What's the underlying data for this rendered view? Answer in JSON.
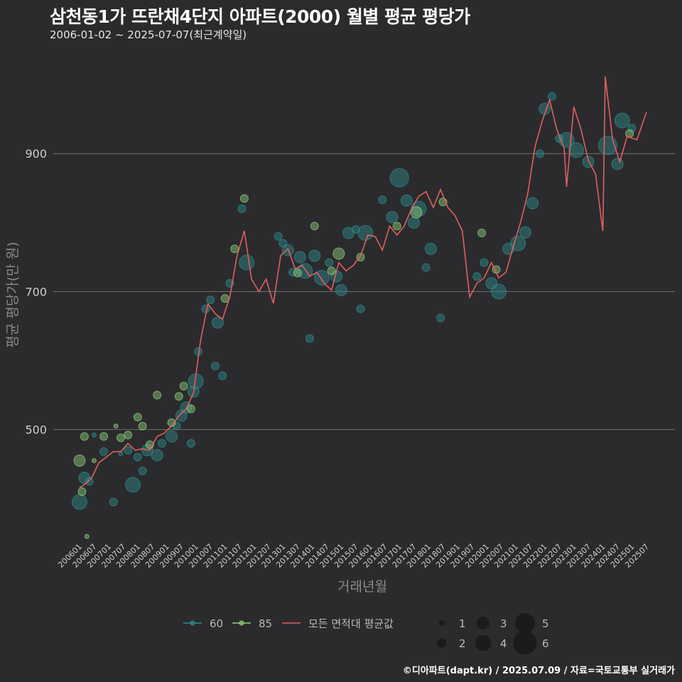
{
  "header": {
    "title": "삼천동1가 뜨란채4단지 아파트(2000) 월별 평균 평당가",
    "subtitle": "2006-01-02 ~ 2025-07-07(최근계약일)"
  },
  "caption": "©디아파트(dapt.kr) / 2025.07.09 / 자료=국토교통부 실거래가",
  "colors": {
    "background": "#2b2b2d",
    "gridline": "#6f6f6f",
    "series_60": "#2e8b8f",
    "series_85": "#8fd17a",
    "average_line": "#e0605e"
  },
  "chart_data": {
    "type": "scatter",
    "xlabel": "거래년월",
    "ylabel": "평균 평당가(만 원)",
    "ylim": [
      340,
      1030
    ],
    "yticks": [
      500,
      700,
      900
    ],
    "grid": "horizontal",
    "x_tick_labels": [
      "200601",
      "200607",
      "200701",
      "200707",
      "200801",
      "200807",
      "200901",
      "200907",
      "201001",
      "201007",
      "201101",
      "201107",
      "201201",
      "201207",
      "201301",
      "201307",
      "201401",
      "201407",
      "201501",
      "201507",
      "201601",
      "201607",
      "201701",
      "201707",
      "201801",
      "201807",
      "201901",
      "201907",
      "202001",
      "202007",
      "202101",
      "202107",
      "202201",
      "202207",
      "202301",
      "202307",
      "202401",
      "202407",
      "202501",
      "202507"
    ],
    "legend": {
      "position": "bottom",
      "series_items": [
        {
          "key": "60",
          "label": "60",
          "color": "#2e8b8f"
        },
        {
          "key": "85",
          "label": "85",
          "color": "#8fd17a"
        },
        {
          "key": "avg",
          "label": "모든 면적대 평균값",
          "color": "#e0605e"
        }
      ],
      "size_items": [
        {
          "label": "1",
          "value": 1
        },
        {
          "label": "2",
          "value": 2
        },
        {
          "label": "3",
          "value": 3
        },
        {
          "label": "4",
          "value": 4
        },
        {
          "label": "5",
          "value": 5
        },
        {
          "label": "6",
          "value": 6
        }
      ]
    },
    "series": [
      {
        "name": "60",
        "type": "scatter",
        "color": "#2e8b8f",
        "points": [
          {
            "x": "2006-01",
            "y": 395,
            "count": 4
          },
          {
            "x": "2006-03",
            "y": 430,
            "count": 3
          },
          {
            "x": "2006-05",
            "y": 425,
            "count": 2
          },
          {
            "x": "2006-07",
            "y": 492,
            "count": 1
          },
          {
            "x": "2006-11",
            "y": 468,
            "count": 2
          },
          {
            "x": "2007-03",
            "y": 395,
            "count": 2
          },
          {
            "x": "2007-06",
            "y": 465,
            "count": 1
          },
          {
            "x": "2007-09",
            "y": 470,
            "count": 2
          },
          {
            "x": "2007-11",
            "y": 420,
            "count": 4
          },
          {
            "x": "2008-01",
            "y": 460,
            "count": 2
          },
          {
            "x": "2008-03",
            "y": 440,
            "count": 2
          },
          {
            "x": "2008-05",
            "y": 470,
            "count": 3
          },
          {
            "x": "2008-09",
            "y": 463,
            "count": 3
          },
          {
            "x": "2008-11",
            "y": 480,
            "count": 2
          },
          {
            "x": "2009-03",
            "y": 490,
            "count": 3
          },
          {
            "x": "2009-05",
            "y": 505,
            "count": 2
          },
          {
            "x": "2009-07",
            "y": 520,
            "count": 3
          },
          {
            "x": "2009-09",
            "y": 532,
            "count": 3
          },
          {
            "x": "2009-11",
            "y": 480,
            "count": 2
          },
          {
            "x": "2009-12",
            "y": 555,
            "count": 3
          },
          {
            "x": "2010-01",
            "y": 570,
            "count": 4
          },
          {
            "x": "2010-02",
            "y": 613,
            "count": 2
          },
          {
            "x": "2010-05",
            "y": 675,
            "count": 2
          },
          {
            "x": "2010-07",
            "y": 688,
            "count": 2
          },
          {
            "x": "2010-09",
            "y": 592,
            "count": 2
          },
          {
            "x": "2010-10",
            "y": 655,
            "count": 3
          },
          {
            "x": "2010-12",
            "y": 578,
            "count": 2
          },
          {
            "x": "2011-03",
            "y": 712,
            "count": 2
          },
          {
            "x": "2011-08",
            "y": 820,
            "count": 2
          },
          {
            "x": "2011-10",
            "y": 742,
            "count": 4
          },
          {
            "x": "2012-11",
            "y": 780,
            "count": 2
          },
          {
            "x": "2013-01",
            "y": 770,
            "count": 2
          },
          {
            "x": "2013-03",
            "y": 760,
            "count": 3
          },
          {
            "x": "2013-05",
            "y": 728,
            "count": 2
          },
          {
            "x": "2013-08",
            "y": 750,
            "count": 3
          },
          {
            "x": "2013-10",
            "y": 730,
            "count": 4
          },
          {
            "x": "2013-12",
            "y": 632,
            "count": 2
          },
          {
            "x": "2014-02",
            "y": 752,
            "count": 3
          },
          {
            "x": "2014-05",
            "y": 720,
            "count": 4
          },
          {
            "x": "2014-08",
            "y": 742,
            "count": 2
          },
          {
            "x": "2014-11",
            "y": 722,
            "count": 3
          },
          {
            "x": "2015-01",
            "y": 702,
            "count": 3
          },
          {
            "x": "2015-04",
            "y": 785,
            "count": 3
          },
          {
            "x": "2015-07",
            "y": 790,
            "count": 2
          },
          {
            "x": "2015-09",
            "y": 675,
            "count": 2
          },
          {
            "x": "2015-11",
            "y": 785,
            "count": 4
          },
          {
            "x": "2016-06",
            "y": 833,
            "count": 2
          },
          {
            "x": "2016-10",
            "y": 808,
            "count": 3
          },
          {
            "x": "2017-01",
            "y": 865,
            "count": 5
          },
          {
            "x": "2017-04",
            "y": 832,
            "count": 3
          },
          {
            "x": "2017-07",
            "y": 800,
            "count": 3
          },
          {
            "x": "2017-09",
            "y": 820,
            "count": 4
          },
          {
            "x": "2017-12",
            "y": 735,
            "count": 2
          },
          {
            "x": "2018-02",
            "y": 762,
            "count": 3
          },
          {
            "x": "2018-06",
            "y": 662,
            "count": 2
          },
          {
            "x": "2019-09",
            "y": 722,
            "count": 2
          },
          {
            "x": "2019-12",
            "y": 742,
            "count": 2
          },
          {
            "x": "2020-03",
            "y": 712,
            "count": 3
          },
          {
            "x": "2020-06",
            "y": 700,
            "count": 4
          },
          {
            "x": "2020-10",
            "y": 762,
            "count": 3
          },
          {
            "x": "2021-02",
            "y": 770,
            "count": 4
          },
          {
            "x": "2021-05",
            "y": 786,
            "count": 3
          },
          {
            "x": "2021-08",
            "y": 828,
            "count": 3
          },
          {
            "x": "2021-11",
            "y": 900,
            "count": 2
          },
          {
            "x": "2022-01",
            "y": 965,
            "count": 3
          },
          {
            "x": "2022-04",
            "y": 983,
            "count": 2
          },
          {
            "x": "2022-07",
            "y": 922,
            "count": 2
          },
          {
            "x": "2022-10",
            "y": 920,
            "count": 4
          },
          {
            "x": "2023-02",
            "y": 905,
            "count": 4
          },
          {
            "x": "2023-07",
            "y": 888,
            "count": 3
          },
          {
            "x": "2024-03",
            "y": 912,
            "count": 5
          },
          {
            "x": "2024-07",
            "y": 885,
            "count": 3
          },
          {
            "x": "2024-09",
            "y": 948,
            "count": 4
          },
          {
            "x": "2025-01",
            "y": 937,
            "count": 2
          }
        ]
      },
      {
        "name": "85",
        "type": "scatter",
        "color": "#8fd17a",
        "points": [
          {
            "x": "2006-01",
            "y": 455,
            "count": 3
          },
          {
            "x": "2006-02",
            "y": 410,
            "count": 2
          },
          {
            "x": "2006-03",
            "y": 490,
            "count": 2
          },
          {
            "x": "2006-04",
            "y": 345,
            "count": 1
          },
          {
            "x": "2006-07",
            "y": 455,
            "count": 1
          },
          {
            "x": "2006-11",
            "y": 490,
            "count": 2
          },
          {
            "x": "2007-04",
            "y": 505,
            "count": 1
          },
          {
            "x": "2007-06",
            "y": 488,
            "count": 2
          },
          {
            "x": "2007-09",
            "y": 492,
            "count": 2
          },
          {
            "x": "2008-01",
            "y": 518,
            "count": 2
          },
          {
            "x": "2008-03",
            "y": 505,
            "count": 2
          },
          {
            "x": "2008-06",
            "y": 478,
            "count": 2
          },
          {
            "x": "2008-09",
            "y": 550,
            "count": 2
          },
          {
            "x": "2009-03",
            "y": 510,
            "count": 2
          },
          {
            "x": "2009-06",
            "y": 548,
            "count": 2
          },
          {
            "x": "2009-08",
            "y": 563,
            "count": 2
          },
          {
            "x": "2009-11",
            "y": 530,
            "count": 2
          },
          {
            "x": "2011-01",
            "y": 690,
            "count": 2
          },
          {
            "x": "2011-05",
            "y": 762,
            "count": 2
          },
          {
            "x": "2011-09",
            "y": 835,
            "count": 2
          },
          {
            "x": "2013-07",
            "y": 727,
            "count": 2
          },
          {
            "x": "2014-02",
            "y": 795,
            "count": 2
          },
          {
            "x": "2014-09",
            "y": 730,
            "count": 2
          },
          {
            "x": "2014-12",
            "y": 755,
            "count": 3
          },
          {
            "x": "2015-09",
            "y": 750,
            "count": 2
          },
          {
            "x": "2016-12",
            "y": 795,
            "count": 2
          },
          {
            "x": "2017-08",
            "y": 815,
            "count": 3
          },
          {
            "x": "2018-07",
            "y": 830,
            "count": 2
          },
          {
            "x": "2019-11",
            "y": 785,
            "count": 2
          },
          {
            "x": "2020-05",
            "y": 732,
            "count": 2
          },
          {
            "x": "2024-12",
            "y": 929,
            "count": 2
          }
        ]
      },
      {
        "name": "모든 면적대 평균값",
        "type": "line",
        "color": "#e0605e",
        "points": [
          {
            "x": "2006-01",
            "y": 416
          },
          {
            "x": "2006-03",
            "y": 420
          },
          {
            "x": "2006-06",
            "y": 430
          },
          {
            "x": "2006-09",
            "y": 452
          },
          {
            "x": "2006-12",
            "y": 460
          },
          {
            "x": "2007-03",
            "y": 468
          },
          {
            "x": "2007-06",
            "y": 468
          },
          {
            "x": "2007-09",
            "y": 480
          },
          {
            "x": "2007-12",
            "y": 470
          },
          {
            "x": "2008-03",
            "y": 472
          },
          {
            "x": "2008-06",
            "y": 470
          },
          {
            "x": "2008-09",
            "y": 490
          },
          {
            "x": "2008-12",
            "y": 495
          },
          {
            "x": "2009-03",
            "y": 505
          },
          {
            "x": "2009-06",
            "y": 520
          },
          {
            "x": "2009-09",
            "y": 530
          },
          {
            "x": "2009-12",
            "y": 553
          },
          {
            "x": "2010-03",
            "y": 630
          },
          {
            "x": "2010-06",
            "y": 682
          },
          {
            "x": "2010-09",
            "y": 668
          },
          {
            "x": "2010-12",
            "y": 660
          },
          {
            "x": "2011-03",
            "y": 692
          },
          {
            "x": "2011-06",
            "y": 752
          },
          {
            "x": "2011-09",
            "y": 788
          },
          {
            "x": "2011-12",
            "y": 718
          },
          {
            "x": "2012-03",
            "y": 700
          },
          {
            "x": "2012-06",
            "y": 718
          },
          {
            "x": "2012-09",
            "y": 683
          },
          {
            "x": "2012-12",
            "y": 752
          },
          {
            "x": "2013-03",
            "y": 762
          },
          {
            "x": "2013-06",
            "y": 733
          },
          {
            "x": "2013-09",
            "y": 738
          },
          {
            "x": "2013-12",
            "y": 722
          },
          {
            "x": "2014-03",
            "y": 728
          },
          {
            "x": "2014-06",
            "y": 712
          },
          {
            "x": "2014-09",
            "y": 702
          },
          {
            "x": "2014-12",
            "y": 742
          },
          {
            "x": "2015-03",
            "y": 730
          },
          {
            "x": "2015-06",
            "y": 738
          },
          {
            "x": "2015-09",
            "y": 752
          },
          {
            "x": "2015-12",
            "y": 782
          },
          {
            "x": "2016-03",
            "y": 780
          },
          {
            "x": "2016-06",
            "y": 760
          },
          {
            "x": "2016-09",
            "y": 795
          },
          {
            "x": "2016-12",
            "y": 782
          },
          {
            "x": "2017-03",
            "y": 795
          },
          {
            "x": "2017-06",
            "y": 820
          },
          {
            "x": "2017-09",
            "y": 838
          },
          {
            "x": "2017-12",
            "y": 845
          },
          {
            "x": "2018-03",
            "y": 822
          },
          {
            "x": "2018-06",
            "y": 848
          },
          {
            "x": "2018-09",
            "y": 822
          },
          {
            "x": "2018-12",
            "y": 810
          },
          {
            "x": "2019-03",
            "y": 788
          },
          {
            "x": "2019-06",
            "y": 692
          },
          {
            "x": "2019-09",
            "y": 712
          },
          {
            "x": "2019-12",
            "y": 720
          },
          {
            "x": "2020-03",
            "y": 742
          },
          {
            "x": "2020-06",
            "y": 720
          },
          {
            "x": "2020-09",
            "y": 728
          },
          {
            "x": "2020-12",
            "y": 765
          },
          {
            "x": "2021-03",
            "y": 800
          },
          {
            "x": "2021-06",
            "y": 842
          },
          {
            "x": "2021-09",
            "y": 910
          },
          {
            "x": "2021-12",
            "y": 948
          },
          {
            "x": "2022-03",
            "y": 978
          },
          {
            "x": "2022-06",
            "y": 935
          },
          {
            "x": "2022-09",
            "y": 908
          },
          {
            "x": "2022-10",
            "y": 852
          },
          {
            "x": "2023-01",
            "y": 968
          },
          {
            "x": "2023-04",
            "y": 935
          },
          {
            "x": "2023-07",
            "y": 890
          },
          {
            "x": "2023-10",
            "y": 870
          },
          {
            "x": "2024-01",
            "y": 788
          },
          {
            "x": "2024-02",
            "y": 1012
          },
          {
            "x": "2024-05",
            "y": 920
          },
          {
            "x": "2024-08",
            "y": 888
          },
          {
            "x": "2024-11",
            "y": 925
          },
          {
            "x": "2025-03",
            "y": 920
          },
          {
            "x": "2025-07",
            "y": 960
          }
        ]
      }
    ]
  }
}
